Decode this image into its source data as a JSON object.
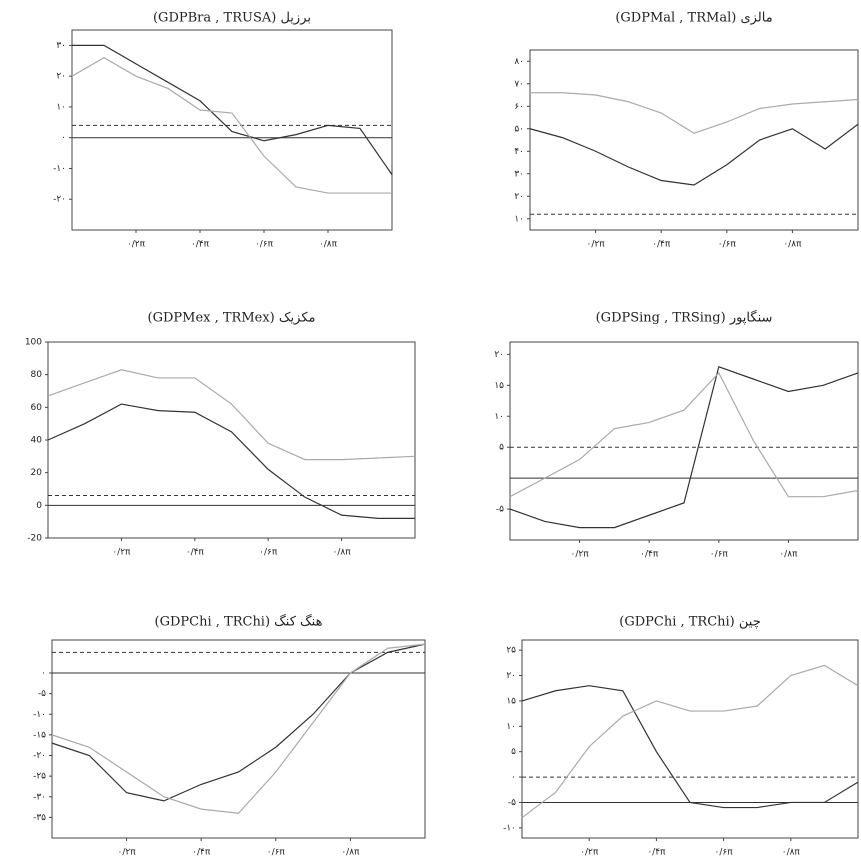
{
  "chart_data": [
    {
      "type": "line",
      "title": "(GDPBra , TRUSA) برزیل",
      "x": [
        0,
        0.1,
        0.2,
        0.3,
        0.4,
        0.5,
        0.6,
        0.7,
        0.8,
        0.9,
        1
      ],
      "series": [
        {
          "color": "#333333",
          "values": [
            30,
            30,
            24,
            18,
            12,
            2,
            -1,
            1,
            4,
            3,
            -12
          ]
        },
        {
          "color": "#aaaaaa",
          "values": [
            20,
            26,
            20,
            16,
            9,
            8,
            -6,
            -16,
            -18,
            -18,
            -18
          ]
        }
      ],
      "hlines": [
        {
          "value": 0,
          "style": "solid"
        },
        {
          "value": 4,
          "style": "dashed"
        }
      ],
      "xlim": [
        0,
        1
      ],
      "ylim": [
        -30,
        35
      ],
      "xticks": [
        {
          "value": 0.2,
          "label": "۰/۲π"
        },
        {
          "value": 0.4,
          "label": "۰/۴π"
        },
        {
          "value": 0.6,
          "label": "۰/۶π"
        },
        {
          "value": 0.8,
          "label": "۰/۸π"
        }
      ],
      "yticks": [
        {
          "value": 30,
          "label": "۳۰"
        },
        {
          "value": 20,
          "label": "۲۰"
        },
        {
          "value": 10,
          "label": "۱۰"
        },
        {
          "value": 0,
          "label": "۰"
        },
        {
          "value": -10,
          "label": "-۱۰"
        },
        {
          "value": -20,
          "label": "-۲۰"
        }
      ]
    },
    {
      "type": "line",
      "title": "(GDPMal , TRMal) مالزی",
      "x": [
        0,
        0.1,
        0.2,
        0.3,
        0.4,
        0.5,
        0.6,
        0.7,
        0.8,
        0.9,
        1
      ],
      "series": [
        {
          "color": "#333333",
          "values": [
            50,
            46,
            40,
            33,
            27,
            25,
            34,
            45,
            50,
            41,
            52
          ]
        },
        {
          "color": "#aaaaaa",
          "values": [
            66,
            66,
            65,
            62,
            57,
            48,
            53,
            59,
            61,
            62,
            63
          ]
        }
      ],
      "hlines": [
        {
          "value": 12,
          "style": "dashed"
        }
      ],
      "xlim": [
        0,
        1
      ],
      "ylim": [
        5,
        85
      ],
      "xticks": [
        {
          "value": 0.2,
          "label": "۰/۲π"
        },
        {
          "value": 0.4,
          "label": "۰/۴π"
        },
        {
          "value": 0.6,
          "label": "۰/۶π"
        },
        {
          "value": 0.8,
          "label": "۰/۸π"
        }
      ],
      "yticks": [
        {
          "value": 80,
          "label": "۸۰"
        },
        {
          "value": 70,
          "label": "۷۰"
        },
        {
          "value": 60,
          "label": "۶۰"
        },
        {
          "value": 50,
          "label": "۵۰"
        },
        {
          "value": 40,
          "label": "۴۰"
        },
        {
          "value": 30,
          "label": "۳۰"
        },
        {
          "value": 20,
          "label": "۲۰"
        },
        {
          "value": 10,
          "label": "۱۰"
        }
      ]
    },
    {
      "type": "line",
      "title": "(GDPMex , TRMex) مکزیک",
      "x": [
        0,
        0.1,
        0.2,
        0.3,
        0.4,
        0.5,
        0.6,
        0.7,
        0.8,
        0.9,
        1
      ],
      "series": [
        {
          "color": "#333333",
          "values": [
            40,
            50,
            62,
            58,
            57,
            45,
            22,
            5,
            -6,
            -8,
            -8
          ]
        },
        {
          "color": "#aaaaaa",
          "values": [
            67,
            75,
            83,
            78,
            78,
            62,
            38,
            28,
            28,
            29,
            30
          ]
        }
      ],
      "hlines": [
        {
          "value": 0,
          "style": "solid"
        },
        {
          "value": 6,
          "style": "dashed"
        }
      ],
      "xlim": [
        0,
        1
      ],
      "ylim": [
        -20,
        100
      ],
      "xticks": [
        {
          "value": 0.2,
          "label": "۰/۲π"
        },
        {
          "value": 0.4,
          "label": "۰/۴π"
        },
        {
          "value": 0.6,
          "label": "۰/۶π"
        },
        {
          "value": 0.8,
          "label": "۰/۸π"
        }
      ],
      "yticks": [
        100,
        80,
        60,
        40,
        20,
        0,
        -20
      ]
    },
    {
      "type": "line",
      "title": "(GDPSing , TRSing) سنگاپور",
      "x": [
        0,
        0.1,
        0.2,
        0.3,
        0.4,
        0.5,
        0.6,
        0.7,
        0.8,
        0.9,
        1
      ],
      "series": [
        {
          "color": "#333333",
          "values": [
            -5,
            -7,
            -8,
            -8,
            -6,
            -4,
            18,
            16,
            14,
            15,
            17
          ]
        },
        {
          "color": "#aaaaaa",
          "values": [
            -3,
            0,
            3,
            8,
            9,
            11,
            17,
            6,
            -3,
            -3,
            -2
          ]
        }
      ],
      "hlines": [
        {
          "value": 0,
          "style": "solid"
        },
        {
          "value": 5,
          "style": "dashed"
        }
      ],
      "xlim": [
        0,
        1
      ],
      "ylim": [
        -10,
        22
      ],
      "xticks": [
        {
          "value": 0.2,
          "label": "۰/۲π"
        },
        {
          "value": 0.4,
          "label": "۰/۴π"
        },
        {
          "value": 0.6,
          "label": "۰/۶π"
        },
        {
          "value": 0.8,
          "label": "۰/۸π"
        }
      ],
      "yticks": [
        {
          "value": 20,
          "label": "۲۰"
        },
        {
          "value": 15,
          "label": "۱۵"
        },
        {
          "value": 10,
          "label": "۱۰"
        },
        {
          "value": 5,
          "label": "۵"
        },
        {
          "value": -5,
          "label": "-۵"
        }
      ]
    },
    {
      "type": "line",
      "title": "(GDPChi , TRChi) هنگ کنگ",
      "x": [
        0,
        0.1,
        0.2,
        0.3,
        0.4,
        0.5,
        0.6,
        0.7,
        0.8,
        0.9,
        1
      ],
      "series": [
        {
          "color": "#333333",
          "values": [
            -17,
            -20,
            -29,
            -31,
            -27,
            -24,
            -18,
            -10,
            0,
            5,
            7
          ]
        },
        {
          "color": "#aaaaaa",
          "values": [
            -15,
            -18,
            -24,
            -30,
            -33,
            -34,
            -24,
            -12,
            0,
            6,
            7
          ]
        }
      ],
      "hlines": [
        {
          "value": 0,
          "style": "solid"
        },
        {
          "value": 5,
          "style": "dashed"
        }
      ],
      "xlim": [
        0,
        1
      ],
      "ylim": [
        -40,
        8
      ],
      "xticks": [
        {
          "value": 0.2,
          "label": "۰/۲π"
        },
        {
          "value": 0.4,
          "label": "۰/۴π"
        },
        {
          "value": 0.6,
          "label": "۰/۶π"
        },
        {
          "value": 0.8,
          "label": "۰/۸π"
        }
      ],
      "yticks": [
        {
          "value": 0,
          "label": "۰"
        },
        {
          "value": -5,
          "label": "-۵"
        },
        {
          "value": -10,
          "label": "-۱۰"
        },
        {
          "value": -15,
          "label": "-۱۵"
        },
        {
          "value": -20,
          "label": "-۲۰"
        },
        {
          "value": -25,
          "label": "-۲۵"
        },
        {
          "value": -30,
          "label": "-۳۰"
        },
        {
          "value": -35,
          "label": "-۳۵"
        }
      ]
    },
    {
      "type": "line",
      "title": "(GDPChi , TRChi) چین",
      "x": [
        0,
        0.1,
        0.2,
        0.3,
        0.4,
        0.5,
        0.6,
        0.7,
        0.8,
        0.9,
        1
      ],
      "series": [
        {
          "color": "#333333",
          "values": [
            15,
            17,
            18,
            17,
            5,
            -5,
            -6,
            -6,
            -5,
            -5,
            -1
          ]
        },
        {
          "color": "#aaaaaa",
          "values": [
            -8,
            -3,
            6,
            12,
            15,
            13,
            13,
            14,
            20,
            22,
            18
          ]
        }
      ],
      "hlines": [
        {
          "value": -5,
          "style": "solid"
        },
        {
          "value": 0,
          "style": "dashed"
        }
      ],
      "xlim": [
        0,
        1
      ],
      "ylim": [
        -12,
        27
      ],
      "xticks": [
        {
          "value": 0.2,
          "label": "۰/۲π"
        },
        {
          "value": 0.4,
          "label": "۰/۴π"
        },
        {
          "value": 0.6,
          "label": "۰/۶π"
        },
        {
          "value": 0.8,
          "label": "۰/۸π"
        }
      ],
      "yticks": [
        {
          "value": 25,
          "label": "۲۵"
        },
        {
          "value": 20,
          "label": "۲۰"
        },
        {
          "value": 15,
          "label": "۱۵"
        },
        {
          "value": 10,
          "label": "۱۰"
        },
        {
          "value": 5,
          "label": "۵"
        },
        {
          "value": 0,
          "label": "۰"
        },
        {
          "value": -5,
          "label": "-۵"
        },
        {
          "value": -10,
          "label": "-۱۰"
        }
      ]
    }
  ]
}
